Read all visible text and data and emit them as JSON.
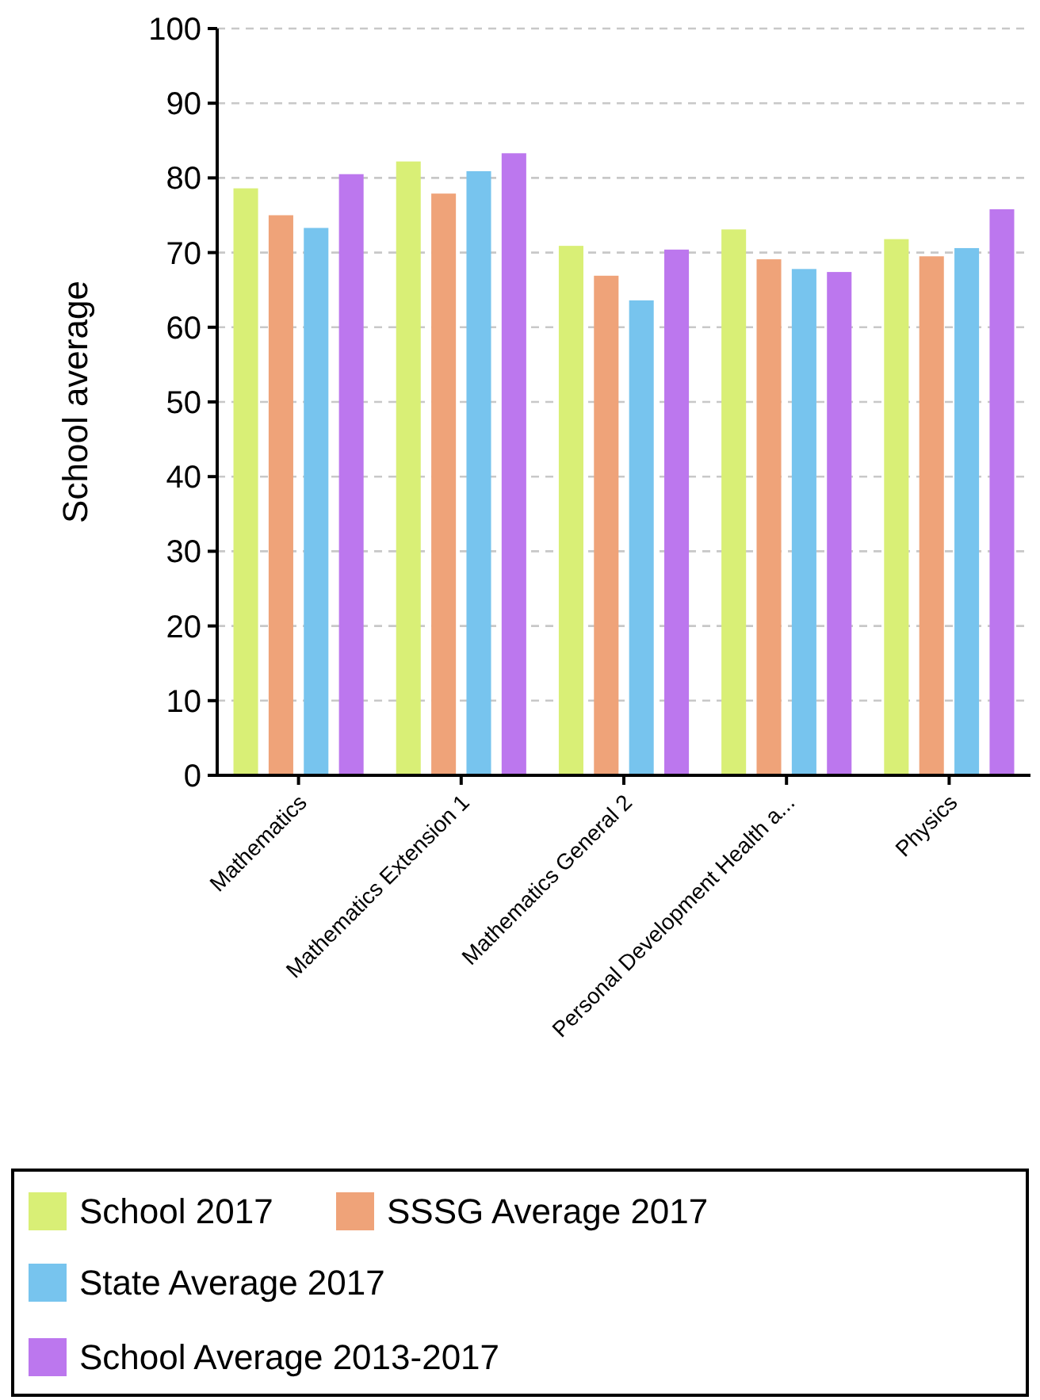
{
  "chart_data": {
    "type": "bar",
    "ylabel": "School average",
    "categories": [
      "Mathematics",
      "Mathematics Extension 1",
      "Mathematics General 2",
      "Personal Development Health a...",
      "Physics"
    ],
    "series": [
      {
        "name": "School 2017",
        "color": "#d9ef76",
        "values": [
          78.6,
          82.2,
          70.9,
          73.1,
          71.8
        ]
      },
      {
        "name": "SSSG Average 2017",
        "color": "#efa379",
        "values": [
          75.0,
          77.9,
          66.9,
          69.1,
          69.5
        ]
      },
      {
        "name": "State Average 2017",
        "color": "#77c4ee",
        "values": [
          73.3,
          80.9,
          63.6,
          67.8,
          70.6
        ]
      },
      {
        "name": "School Average 2013-2017",
        "color": "#bc77ee",
        "values": [
          80.5,
          83.3,
          70.4,
          67.4,
          75.8
        ]
      }
    ],
    "ylim": [
      0,
      100
    ],
    "yticks": [
      0,
      10,
      20,
      30,
      40,
      50,
      60,
      70,
      80,
      90,
      100
    ],
    "grid": "y",
    "legend": "bottom"
  }
}
